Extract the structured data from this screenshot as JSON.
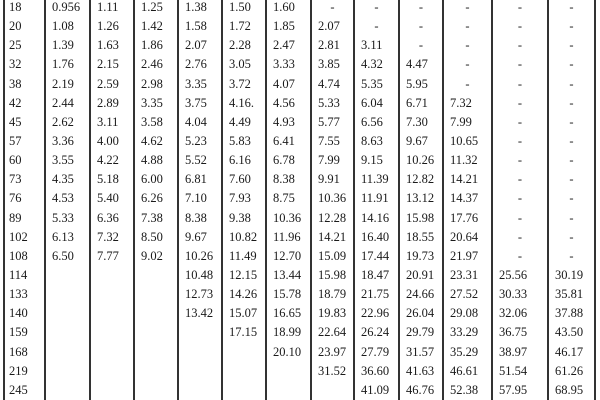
{
  "table": {
    "rows": [
      {
        "label": "18",
        "values": [
          "0.956",
          "1.11",
          "1.25",
          "1.38",
          "1.50",
          "1.60",
          "-",
          "-",
          "-",
          "-",
          "-",
          "-"
        ]
      },
      {
        "label": "20",
        "values": [
          "1.08",
          "1.26",
          "1.42",
          "1.58",
          "1.72",
          "1.85",
          "2.07",
          "-",
          "-",
          "-",
          "-",
          "-"
        ]
      },
      {
        "label": "25",
        "values": [
          "1.39",
          "1.63",
          "1.86",
          "2.07",
          "2.28",
          "2.47",
          "2.81",
          "3.11",
          "-",
          "-",
          "-",
          "-"
        ]
      },
      {
        "label": "32",
        "values": [
          "1.76",
          "2.15",
          "2.46",
          "2.76",
          "3.05",
          "3.33",
          "3.85",
          "4.32",
          "4.47",
          "-",
          "-",
          "-"
        ]
      },
      {
        "label": "38",
        "values": [
          "2.19",
          "2.59",
          "2.98",
          "3.35",
          "3.72",
          "4.07",
          "4.74",
          "5.35",
          "5.95",
          "-",
          "-",
          "-"
        ]
      },
      {
        "label": "42",
        "values": [
          "2.44",
          "2.89",
          "3.35",
          "3.75",
          "4.16.",
          "4.56",
          "5.33",
          "6.04",
          "6.71",
          "7.32",
          "-",
          "-"
        ]
      },
      {
        "label": "45",
        "values": [
          "2.62",
          "3.11",
          "3.58",
          "4.04",
          "4.49",
          "4.93",
          "5.77",
          "6.56",
          "7.30",
          "7.99",
          "-",
          "-"
        ]
      },
      {
        "label": "57",
        "values": [
          "3.36",
          "4.00",
          "4.62",
          "5.23",
          "5.83",
          "6.41",
          "7.55",
          "8.63",
          "9.67",
          "10.65",
          "-",
          "-"
        ]
      },
      {
        "label": "60",
        "values": [
          "3.55",
          "4.22",
          "4.88",
          "5.52",
          "6.16",
          "6.78",
          "7.99",
          "9.15",
          "10.26",
          "11.32",
          "-",
          "-"
        ]
      },
      {
        "label": "73",
        "values": [
          "4.35",
          "5.18",
          "6.00",
          "6.81",
          "7.60",
          "8.38",
          "9.91",
          "11.39",
          "12.82",
          "14.21",
          "-",
          "-"
        ]
      },
      {
        "label": "76",
        "values": [
          "4.53",
          "5.40",
          "6.26",
          "7.10",
          "7.93",
          "8.75",
          "10.36",
          "11.91",
          "13.12",
          "14.37",
          "-",
          "-"
        ]
      },
      {
        "label": "89",
        "values": [
          "5.33",
          "6.36",
          "7.38",
          "8.38",
          "9.38",
          "10.36",
          "12.28",
          "14.16",
          "15.98",
          "17.76",
          "-",
          "-"
        ]
      },
      {
        "label": "102",
        "values": [
          "6.13",
          "7.32",
          "8.50",
          "9.67",
          "10.82",
          "11.96",
          "14.21",
          "16.40",
          "18.55",
          "20.64",
          "-",
          "-"
        ]
      },
      {
        "label": "108",
        "values": [
          "6.50",
          "7.77",
          "9.02",
          "10.26",
          "11.49",
          "12.70",
          "15.09",
          "17.44",
          "19.73",
          "21.97",
          "-",
          "-"
        ]
      },
      {
        "label": "114",
        "values": [
          "",
          "",
          "",
          "10.48",
          "12.15",
          "13.44",
          "15.98",
          "18.47",
          "20.91",
          "23.31",
          "25.56",
          "30.19"
        ]
      },
      {
        "label": "133",
        "values": [
          "",
          "",
          "",
          "12.73",
          "14.26",
          "15.78",
          "18.79",
          "21.75",
          "24.66",
          "27.52",
          "30.33",
          "35.81"
        ]
      },
      {
        "label": "140",
        "values": [
          "",
          "",
          "",
          "13.42",
          "15.07",
          "16.65",
          "19.83",
          "22.96",
          "26.04",
          "29.08",
          "32.06",
          "37.88"
        ]
      },
      {
        "label": "159",
        "values": [
          "",
          "",
          "",
          "",
          "17.15",
          "18.99",
          "22.64",
          "26.24",
          "29.79",
          "33.29",
          "36.75",
          "43.50"
        ]
      },
      {
        "label": "168",
        "values": [
          "",
          "",
          "",
          "",
          "",
          "20.10",
          "23.97",
          "27.79",
          "31.57",
          "35.29",
          "38.97",
          "46.17"
        ]
      },
      {
        "label": "219",
        "values": [
          "",
          "",
          "",
          "",
          "",
          "",
          "31.52",
          "36.60",
          "41.63",
          "46.61",
          "51.54",
          "61.26"
        ]
      },
      {
        "label": "245",
        "values": [
          "",
          "",
          "",
          "",
          "",
          "",
          "",
          "41.09",
          "46.76",
          "52.38",
          "57.95",
          "68.95"
        ]
      }
    ]
  }
}
